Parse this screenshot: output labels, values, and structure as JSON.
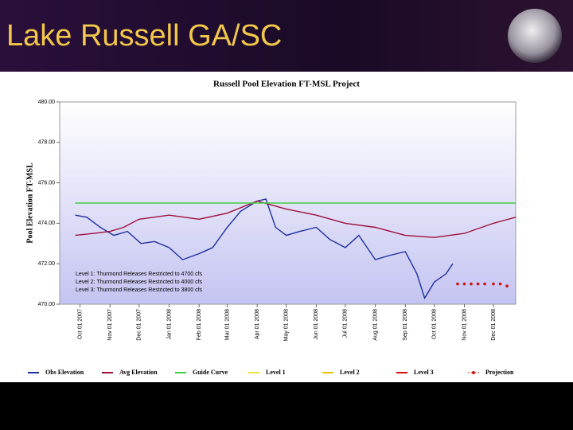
{
  "slide_title": "Lake Russell GA/SC",
  "chart_data": {
    "type": "line",
    "title": "Russell Pool Elevation FT-MSL Project",
    "y_label": "Pool Elevation FT-MSL",
    "xlim": [
      "2007-09-10",
      "2008-12-24"
    ],
    "ylim": [
      470,
      480
    ],
    "yticks": [
      {
        "value": 470,
        "label": "470.00"
      },
      {
        "value": 472,
        "label": "472.00"
      },
      {
        "value": 474,
        "label": "474.00"
      },
      {
        "value": 476,
        "label": "476.00"
      },
      {
        "value": 478,
        "label": "478.00"
      },
      {
        "value": 480,
        "label": "480.00"
      }
    ],
    "xticks": [
      {
        "value": "2007-10-01",
        "label": "Oct 01 2007"
      },
      {
        "value": "2007-11-01",
        "label": "Nov 01 2007"
      },
      {
        "value": "2007-12-01",
        "label": "Dec 01 2007"
      },
      {
        "value": "2008-01-01",
        "label": "Jan 01 2008"
      },
      {
        "value": "2008-02-01",
        "label": "Feb 01 2008"
      },
      {
        "value": "2008-03-01",
        "label": "Mar 01 2008"
      },
      {
        "value": "2008-04-01",
        "label": "Apr 01 2008"
      },
      {
        "value": "2008-05-01",
        "label": "May 01 2008"
      },
      {
        "value": "2008-06-01",
        "label": "Jun 01 2008"
      },
      {
        "value": "2008-07-01",
        "label": "Jul 01 2008"
      },
      {
        "value": "2008-08-01",
        "label": "Aug 01 2008"
      },
      {
        "value": "2008-09-01",
        "label": "Sep 01 2008"
      },
      {
        "value": "2008-10-01",
        "label": "Oct 01 2008"
      },
      {
        "value": "2008-11-01",
        "label": "Nov 01 2008"
      },
      {
        "value": "2008-12-01",
        "label": "Dec 01 2008"
      }
    ],
    "annotations": [
      "Level 1: Thurmond Releases Restricted to 4700 cfs",
      "Level 2: Thurmond Releases Restricted to 4000 cfs",
      "Level 3: Thurmond Releases Restricted to 3800 cfs"
    ],
    "series": [
      {
        "name": "Obs Elevation",
        "color": "#1f2fa0",
        "x": [
          "2007-09-26",
          "2007-10-08",
          "2007-10-22",
          "2007-11-05",
          "2007-11-19",
          "2007-12-03",
          "2007-12-17",
          "2008-01-01",
          "2008-01-15",
          "2008-02-01",
          "2008-02-15",
          "2008-03-01",
          "2008-03-15",
          "2008-04-01",
          "2008-04-10",
          "2008-04-20",
          "2008-05-01",
          "2008-05-15",
          "2008-06-01",
          "2008-06-15",
          "2008-07-01",
          "2008-07-15",
          "2008-08-01",
          "2008-08-15",
          "2008-09-01",
          "2008-09-13",
          "2008-09-21",
          "2008-10-01",
          "2008-10-13",
          "2008-10-20"
        ],
        "values": [
          474.4,
          474.3,
          473.8,
          473.4,
          473.6,
          473.0,
          473.1,
          472.8,
          472.2,
          472.5,
          472.8,
          473.8,
          474.6,
          475.1,
          475.2,
          473.8,
          473.4,
          473.6,
          473.8,
          473.2,
          472.8,
          473.4,
          472.2,
          472.4,
          472.6,
          471.5,
          470.3,
          471.1,
          471.5,
          472.0
        ]
      },
      {
        "name": "Avg Elevation",
        "color": "#a0103a",
        "x": [
          "2007-09-26",
          "2007-10-15",
          "2007-11-01",
          "2007-11-15",
          "2007-12-01",
          "2008-01-01",
          "2008-02-01",
          "2008-03-01",
          "2008-04-01",
          "2008-05-01",
          "2008-06-01",
          "2008-07-01",
          "2008-08-01",
          "2008-09-01",
          "2008-10-01",
          "2008-11-01",
          "2008-12-01",
          "2008-12-24"
        ],
        "values": [
          473.4,
          473.5,
          473.6,
          473.8,
          474.2,
          474.4,
          474.2,
          474.5,
          475.1,
          474.7,
          474.4,
          474.0,
          473.8,
          473.4,
          473.3,
          473.5,
          474.0,
          474.3
        ]
      },
      {
        "name": "Guide Curve",
        "color": "#40d040",
        "x": [
          "2007-09-26",
          "2008-12-24"
        ],
        "values": [
          475,
          475
        ]
      },
      {
        "name": "Level 1",
        "color": "#f0e040",
        "x": [],
        "values": []
      },
      {
        "name": "Level 2",
        "color": "#e8c000",
        "x": [],
        "values": []
      },
      {
        "name": "Level 3",
        "color": "#d01010",
        "x": [],
        "values": []
      },
      {
        "name": "Projection",
        "color": "#d01010",
        "marker": "dot",
        "x": [
          "2008-10-25",
          "2008-11-01",
          "2008-11-08",
          "2008-11-15",
          "2008-11-22",
          "2008-12-01",
          "2008-12-08",
          "2008-12-15"
        ],
        "values": [
          471.0,
          471.0,
          471.0,
          471.0,
          471.0,
          471.0,
          471.0,
          470.9
        ]
      }
    ]
  }
}
